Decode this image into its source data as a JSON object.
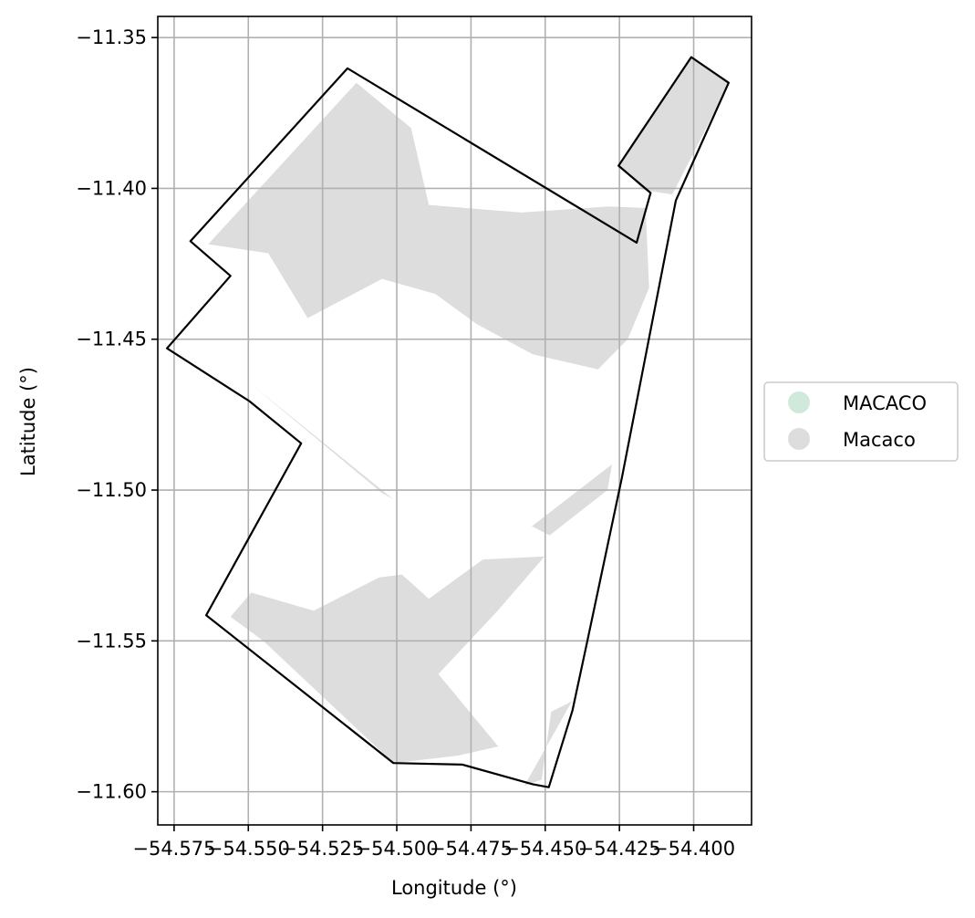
{
  "chart_data": {
    "type": "map",
    "xlabel": "Longitude (°)",
    "ylabel": "Latitude (°)",
    "xlim": [
      -54.5805,
      -54.3805
    ],
    "ylim": [
      -11.611,
      -11.343
    ],
    "grid": true,
    "x_ticks": [
      -54.575,
      -54.55,
      -54.525,
      -54.5,
      -54.475,
      -54.45,
      -54.425,
      -54.4
    ],
    "x_tick_labels": [
      "−54.575",
      "−54.550",
      "−54.525",
      "−54.500",
      "−54.475",
      "−54.450",
      "−54.425",
      "−54.400"
    ],
    "y_ticks": [
      -11.35,
      -11.4,
      -11.45,
      -11.5,
      -11.55,
      -11.6
    ],
    "y_tick_labels": [
      "−11.35",
      "−11.40",
      "−11.45",
      "−11.50",
      "−11.55",
      "−11.60"
    ],
    "legend": {
      "placement": "right",
      "entries": [
        {
          "label": "MACACO",
          "color": "#cfeadb"
        },
        {
          "label": "Macaco",
          "color": "#dddddd"
        }
      ]
    },
    "boundary_color": "#000000",
    "fill_color": "#dddddd",
    "boundary": [
      [
        -54.5166,
        -11.3602
      ],
      [
        -54.5695,
        -11.4175
      ],
      [
        -54.556,
        -11.429
      ],
      [
        -54.5774,
        -11.453
      ],
      [
        -54.5497,
        -11.4705
      ],
      [
        -54.5322,
        -11.4845
      ],
      [
        -54.5642,
        -11.5415
      ],
      [
        -54.5011,
        -11.5905
      ],
      [
        -54.4779,
        -11.591
      ],
      [
        -54.4542,
        -11.5975
      ],
      [
        -54.4488,
        -11.5985
      ],
      [
        -54.4408,
        -11.573
      ],
      [
        -54.4358,
        -11.55
      ],
      [
        -54.4242,
        -11.496
      ],
      [
        -54.406,
        -11.404
      ],
      [
        -54.3882,
        -11.365
      ],
      [
        -54.4008,
        -11.3565
      ],
      [
        -54.4253,
        -11.3925
      ],
      [
        -54.4145,
        -11.4015
      ],
      [
        -54.4192,
        -11.418
      ]
    ],
    "regions": [
      [
        [
          -54.5136,
          -11.365
        ],
        [
          -54.5635,
          -11.4185
        ],
        [
          -54.5433,
          -11.4215
        ],
        [
          -54.53,
          -11.443
        ],
        [
          -54.505,
          -11.43
        ],
        [
          -54.487,
          -11.435
        ],
        [
          -54.473,
          -11.445
        ],
        [
          -54.4542,
          -11.455
        ],
        [
          -54.4322,
          -11.46
        ],
        [
          -54.4222,
          -11.45
        ],
        [
          -54.415,
          -11.433
        ],
        [
          -54.4162,
          -11.4065
        ],
        [
          -54.4285,
          -11.406
        ],
        [
          -54.458,
          -11.408
        ],
        [
          -54.4892,
          -11.4055
        ],
        [
          -54.4952,
          -11.38
        ]
      ],
      [
        [
          -54.4208,
          -11.385
        ],
        [
          -54.4008,
          -11.3565
        ],
        [
          -54.388,
          -11.365
        ],
        [
          -54.4072,
          -11.402
        ],
        [
          -54.4169,
          -11.4005
        ],
        [
          -54.425,
          -11.3925
        ]
      ],
      [
        [
          -54.5502,
          -11.464
        ],
        [
          -54.505,
          -11.501
        ],
        [
          -54.5012,
          -11.503
        ],
        [
          -54.5452,
          -11.468
        ]
      ],
      [
        [
          -54.556,
          -11.542
        ],
        [
          -54.549,
          -11.534
        ],
        [
          -54.528,
          -11.54
        ],
        [
          -54.506,
          -11.529
        ],
        [
          -54.4983,
          -11.528
        ],
        [
          -54.4892,
          -11.536
        ],
        [
          -54.471,
          -11.523
        ],
        [
          -54.4502,
          -11.522
        ],
        [
          -54.466,
          -11.54
        ],
        [
          -54.486,
          -11.561
        ],
        [
          -54.4658,
          -11.585
        ],
        [
          -54.4792,
          -11.588
        ],
        [
          -54.5011,
          -11.5905
        ],
        [
          -54.545,
          -11.55
        ]
      ],
      [
        [
          -54.457,
          -11.598
        ],
        [
          -54.441,
          -11.57
        ],
        [
          -54.448,
          -11.5735
        ],
        [
          -54.4512,
          -11.596
        ]
      ],
      [
        [
          -54.4545,
          -11.512
        ],
        [
          -54.4275,
          -11.4915
        ],
        [
          -54.429,
          -11.5
        ],
        [
          -54.4485,
          -11.515
        ]
      ]
    ]
  }
}
